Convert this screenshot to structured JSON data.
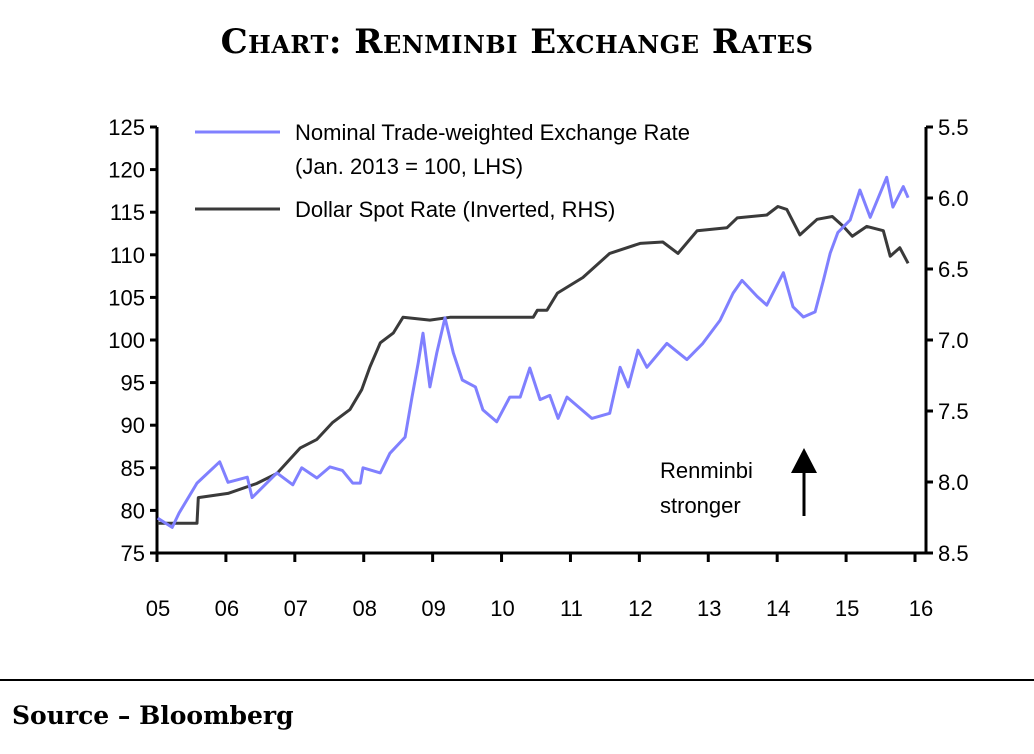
{
  "title": "Chart: Renminbi Exchange Rates",
  "source": "Source – Bloomberg",
  "chart_data": {
    "type": "line",
    "title": "Chart: Renminbi Exchange Rates",
    "xlabel": "",
    "ylabel": "",
    "x_ticks": [
      "05",
      "06",
      "07",
      "08",
      "09",
      "10",
      "11",
      "12",
      "13",
      "14",
      "15",
      "16"
    ],
    "xlim": [
      2005,
      2016
    ],
    "y_left": {
      "ticks": [
        75,
        80,
        85,
        90,
        95,
        100,
        105,
        110,
        115,
        120,
        125
      ],
      "lim": [
        75,
        125
      ]
    },
    "y_right": {
      "ticks": [
        "5.5",
        "6.0",
        "6.5",
        "7.0",
        "7.5",
        "8.0",
        "8.5"
      ],
      "lim": [
        5.5,
        8.5
      ],
      "inverted": true
    },
    "grid": false,
    "legend_position": "top-left",
    "annotation": {
      "line1": "Renminbi",
      "line2": "stronger",
      "arrow": "up"
    },
    "series": [
      {
        "name": "Nominal Trade-weighted Exchange Rate",
        "name_line2": "(Jan. 2013 = 100, LHS)",
        "axis": "left",
        "color": "#8080ff",
        "x": [
          2005.01,
          2005.22,
          2005.32,
          2005.58,
          2005.91,
          2006.03,
          2006.31,
          2006.38,
          2006.74,
          2006.97,
          2007.1,
          2007.32,
          2007.51,
          2007.69,
          2007.84,
          2007.95,
          2007.99,
          2008.24,
          2008.38,
          2008.6,
          2008.7,
          2008.79,
          2008.86,
          2008.96,
          2009.06,
          2009.18,
          2009.3,
          2009.43,
          2009.62,
          2009.73,
          2009.93,
          2010.12,
          2010.27,
          2010.41,
          2010.56,
          2010.7,
          2010.82,
          2010.95,
          2011.31,
          2011.57,
          2011.72,
          2011.84,
          2011.98,
          2012.11,
          2012.4,
          2012.69,
          2012.92,
          2013.17,
          2013.36,
          2013.49,
          2013.71,
          2013.85,
          2014.09,
          2014.23,
          2014.38,
          2014.55,
          2014.67,
          2014.77,
          2014.88,
          2015.06,
          2015.2,
          2015.35,
          2015.59,
          2015.68,
          2015.83,
          2015.9
        ],
        "values": [
          79.1,
          78.0,
          79.7,
          83.2,
          85.7,
          83.3,
          83.9,
          81.5,
          84.4,
          83.0,
          85.0,
          83.8,
          85.1,
          84.7,
          83.2,
          83.2,
          85.0,
          84.4,
          86.7,
          88.6,
          93.3,
          97.3,
          100.8,
          94.5,
          98.5,
          102.6,
          98.5,
          95.3,
          94.5,
          91.8,
          90.4,
          93.3,
          93.3,
          96.7,
          93.0,
          93.5,
          90.8,
          93.3,
          90.8,
          91.4,
          96.8,
          94.5,
          98.8,
          96.8,
          99.6,
          97.7,
          99.6,
          102.3,
          105.5,
          107.0,
          105.1,
          104.1,
          107.9,
          103.9,
          102.7,
          103.3,
          107.0,
          110.2,
          112.6,
          114.1,
          117.6,
          114.4,
          119.1,
          115.6,
          118.0,
          116.7
        ]
      },
      {
        "name": "Dollar Spot Rate (Inverted, RHS)",
        "axis": "right",
        "color": "#3a3a3a",
        "x": [
          2005.01,
          2005.58,
          2005.6,
          2006.03,
          2006.45,
          2006.74,
          2007.08,
          2007.32,
          2007.55,
          2007.8,
          2007.97,
          2008.09,
          2008.24,
          2008.43,
          2008.57,
          2008.96,
          2009.25,
          2010.46,
          2010.52,
          2010.66,
          2010.81,
          2011.18,
          2011.57,
          2012.01,
          2012.34,
          2012.56,
          2012.84,
          2013.27,
          2013.42,
          2013.85,
          2014.01,
          2014.14,
          2014.33,
          2014.58,
          2014.8,
          2014.96,
          2015.09,
          2015.3,
          2015.54,
          2015.64,
          2015.78,
          2015.9
        ],
        "values": [
          8.29,
          8.29,
          8.11,
          8.08,
          8.01,
          7.94,
          7.76,
          7.7,
          7.58,
          7.49,
          7.35,
          7.19,
          7.02,
          6.95,
          6.84,
          6.86,
          6.84,
          6.84,
          6.79,
          6.79,
          6.67,
          6.56,
          6.39,
          6.32,
          6.31,
          6.39,
          6.23,
          6.21,
          6.14,
          6.12,
          6.06,
          6.08,
          6.26,
          6.15,
          6.13,
          6.2,
          6.27,
          6.2,
          6.23,
          6.41,
          6.35,
          6.46
        ]
      }
    ]
  }
}
